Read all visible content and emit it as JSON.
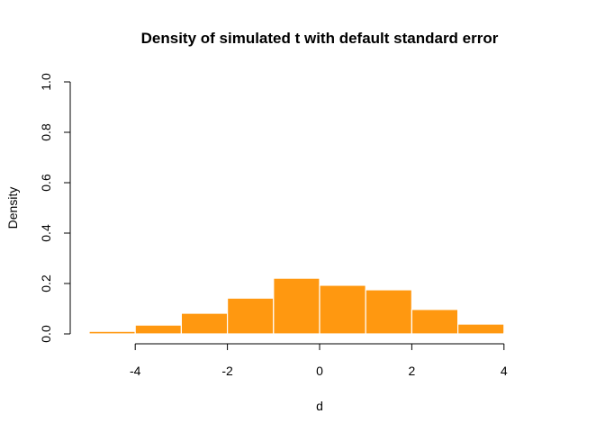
{
  "chart_data": {
    "type": "bar",
    "title": "Density of simulated t with default standard error",
    "xlabel": "d",
    "ylabel": "Density",
    "xlim": [
      -5,
      5
    ],
    "ylim": [
      0,
      1
    ],
    "x_ticks": [
      -4,
      -2,
      0,
      2,
      4
    ],
    "y_ticks": [
      0.0,
      0.2,
      0.4,
      0.6,
      0.8,
      1.0
    ],
    "y_tick_labels": [
      "0.0",
      "0.2",
      "0.4",
      "0.6",
      "0.8",
      "1.0"
    ],
    "bin_edges": [
      -5,
      -4,
      -3,
      -2,
      -1,
      0,
      1,
      2,
      3,
      4,
      5
    ],
    "values": [
      0.01,
      0.035,
      0.082,
      0.142,
      0.221,
      0.193,
      0.175,
      0.097,
      0.039,
      0.003
    ],
    "bar_color": "#ff9810",
    "grid": false
  }
}
